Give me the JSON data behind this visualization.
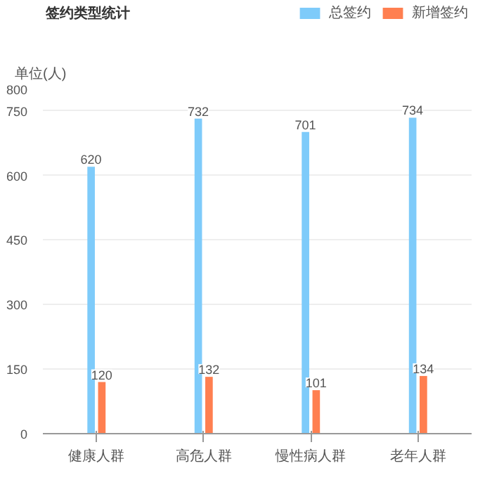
{
  "chart_data": {
    "type": "bar",
    "title": "签约类型统计",
    "ylabel": "单位(人)",
    "categories": [
      "健康人群",
      "高危人群",
      "慢性病人群",
      "老年人群"
    ],
    "series": [
      {
        "name": "总签约",
        "color": "#7ecbfa",
        "values": [
          620,
          732,
          701,
          734
        ]
      },
      {
        "name": "新增签约",
        "color": "#ff7f50",
        "values": [
          120,
          132,
          101,
          134
        ]
      }
    ],
    "ylim": [
      0,
      800
    ],
    "yticks": [
      0,
      150,
      300,
      450,
      600,
      750,
      800
    ],
    "grid": "y",
    "legend": "top right",
    "data_labels": true
  }
}
